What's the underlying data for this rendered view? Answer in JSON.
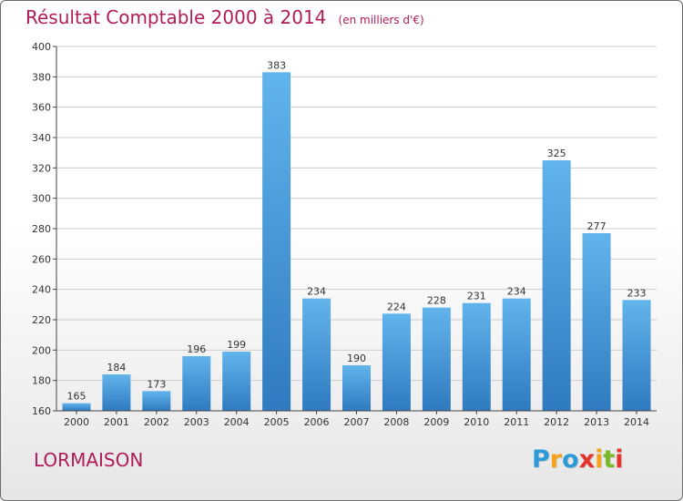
{
  "title": "Résultat Comptable 2000 à 2014",
  "unit": "(en milliers d'€)",
  "commune": "LORMAISON",
  "logo": {
    "text": "Proxiti",
    "colors": [
      "#2b9ad6",
      "#f7a21b",
      "#2b9ad6",
      "#e5322a",
      "#f7a21b",
      "#7ab929",
      "#e5322a"
    ]
  },
  "colors": {
    "bar_top": "#62b4ec",
    "bar_bottom": "#2f7ac0",
    "title": "#b01c58",
    "axis": "#444444",
    "grid": "#cccccc"
  },
  "chart_data": {
    "type": "bar",
    "title": "Résultat Comptable 2000 à 2014",
    "subtitle": "(en milliers d'€)",
    "xlabel": "",
    "ylabel": "",
    "categories": [
      "2000",
      "2001",
      "2002",
      "2003",
      "2004",
      "2005",
      "2006",
      "2007",
      "2008",
      "2009",
      "2010",
      "2011",
      "2012",
      "2013",
      "2014"
    ],
    "values": [
      165,
      184,
      173,
      196,
      199,
      383,
      234,
      190,
      224,
      228,
      231,
      234,
      325,
      277,
      233
    ],
    "ylim": [
      160,
      400
    ],
    "yticks": [
      160,
      180,
      200,
      220,
      240,
      260,
      280,
      300,
      320,
      340,
      360,
      380,
      400
    ],
    "grid": true,
    "data_labels": true
  }
}
